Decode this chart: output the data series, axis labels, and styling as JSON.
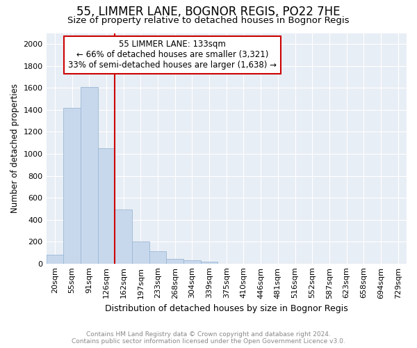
{
  "title": "55, LIMMER LANE, BOGNOR REGIS, PO22 7HE",
  "subtitle": "Size of property relative to detached houses in Bognor Regis",
  "xlabel": "Distribution of detached houses by size in Bognor Regis",
  "ylabel": "Number of detached properties",
  "categories": [
    "20sqm",
    "55sqm",
    "91sqm",
    "126sqm",
    "162sqm",
    "197sqm",
    "233sqm",
    "268sqm",
    "304sqm",
    "339sqm",
    "375sqm",
    "410sqm",
    "446sqm",
    "481sqm",
    "516sqm",
    "552sqm",
    "587sqm",
    "623sqm",
    "658sqm",
    "694sqm",
    "729sqm"
  ],
  "values": [
    80,
    1420,
    1610,
    1050,
    490,
    200,
    110,
    40,
    30,
    20,
    0,
    0,
    0,
    0,
    0,
    0,
    0,
    0,
    0,
    0,
    0
  ],
  "bar_color": "#c8d8ec",
  "bar_edge_color": "#9ab8d5",
  "ylim": [
    0,
    2100
  ],
  "yticks": [
    0,
    200,
    400,
    600,
    800,
    1000,
    1200,
    1400,
    1600,
    1800,
    2000
  ],
  "property_line_x": 3.5,
  "annotation_line1": "55 LIMMER LANE: 133sqm",
  "annotation_line2": "← 66% of detached houses are smaller (3,321)",
  "annotation_line3": "33% of semi-detached houses are larger (1,638) →",
  "annotation_box_color": "#cc0000",
  "footer_line1": "Contains HM Land Registry data © Crown copyright and database right 2024.",
  "footer_line2": "Contains public sector information licensed under the Open Government Licence v3.0.",
  "background_color": "#e8eef5",
  "plot_background": "#ffffff",
  "grid_color": "#ffffff",
  "title_fontsize": 12,
  "subtitle_fontsize": 9.5,
  "ylabel_fontsize": 8.5,
  "xlabel_fontsize": 9,
  "tick_fontsize": 8,
  "annotation_fontsize": 8.5
}
